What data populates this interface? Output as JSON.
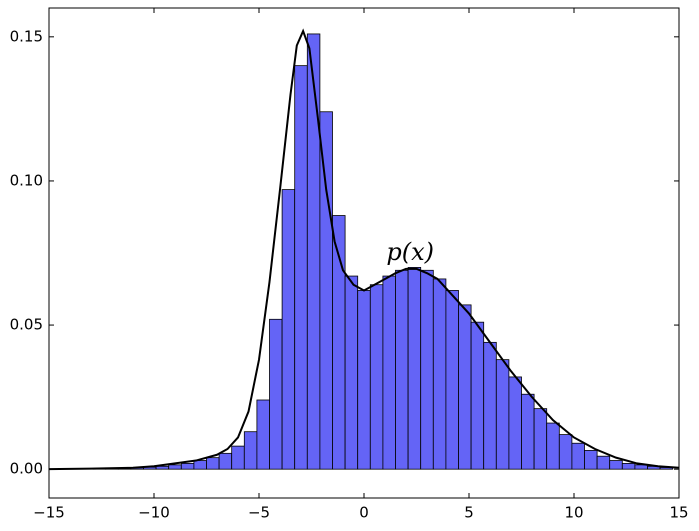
{
  "chart_data": {
    "type": "histogram",
    "bins": [
      -12.9,
      -12.3,
      -11.7,
      -11.1,
      -10.5,
      -9.9,
      -9.3,
      -8.7,
      -8.1,
      -7.5,
      -6.9,
      -6.3,
      -5.7,
      -5.1,
      -4.5,
      -3.9,
      -3.3,
      -2.7,
      -2.1,
      -1.5,
      -0.9,
      -0.3,
      0.3,
      0.9,
      1.5,
      2.1,
      2.7,
      3.3,
      3.9,
      4.5,
      5.1,
      5.7,
      6.3,
      6.9,
      7.5,
      8.1,
      8.7,
      9.3,
      9.9,
      10.5,
      11.1,
      11.7,
      12.3,
      12.9,
      13.5,
      14.1,
      14.7
    ],
    "counts": [
      0.0001,
      0.0002,
      0.0003,
      0.0005,
      0.0007,
      0.001,
      0.0015,
      0.002,
      0.003,
      0.004,
      0.0055,
      0.008,
      0.013,
      0.024,
      0.052,
      0.097,
      0.14,
      0.151,
      0.124,
      0.088,
      0.067,
      0.062,
      0.064,
      0.067,
      0.069,
      0.07,
      0.069,
      0.066,
      0.062,
      0.057,
      0.051,
      0.044,
      0.038,
      0.032,
      0.026,
      0.021,
      0.016,
      0.012,
      0.009,
      0.0065,
      0.0045,
      0.003,
      0.002,
      0.0015,
      0.001,
      0.0006
    ],
    "color": "#6464f6",
    "curve": {
      "color": "#000000",
      "x": [
        -15,
        -13,
        -11,
        -10,
        -9,
        -8,
        -7,
        -6.5,
        -6,
        -5.5,
        -5,
        -4.5,
        -4,
        -3.5,
        -3.2,
        -2.9,
        -2.6,
        -2.2,
        -1.8,
        -1.4,
        -1,
        -0.5,
        0,
        0.5,
        1,
        1.5,
        2,
        2.5,
        3,
        3.5,
        4,
        5,
        6,
        7,
        8,
        9,
        10,
        11,
        12,
        13,
        14,
        15
      ],
      "y": [
        0,
        0.0002,
        0.0005,
        0.001,
        0.002,
        0.003,
        0.005,
        0.007,
        0.011,
        0.02,
        0.038,
        0.065,
        0.097,
        0.13,
        0.147,
        0.152,
        0.146,
        0.122,
        0.097,
        0.079,
        0.069,
        0.064,
        0.062,
        0.064,
        0.066,
        0.068,
        0.0695,
        0.0695,
        0.068,
        0.066,
        0.062,
        0.054,
        0.044,
        0.034,
        0.025,
        0.017,
        0.011,
        0.007,
        0.004,
        0.002,
        0.001,
        0.0005
      ]
    },
    "annotation": {
      "text": "p(x)",
      "x": 2.2,
      "y": 0.0748
    },
    "xlim": [
      -15,
      15
    ],
    "xticks": [
      {
        "value": -15,
        "label": "−15"
      },
      {
        "value": -10,
        "label": "−10"
      },
      {
        "value": -5,
        "label": "−5"
      },
      0,
      5,
      10,
      15
    ],
    "ylim": [
      -0.01,
      0.16
    ],
    "yticks": [
      {
        "value": 0,
        "label": "0.00"
      },
      {
        "value": 0.05,
        "label": "0.05"
      },
      {
        "value": 0.1,
        "label": "0.10"
      },
      {
        "value": 0.15,
        "label": "0.15"
      }
    ]
  }
}
